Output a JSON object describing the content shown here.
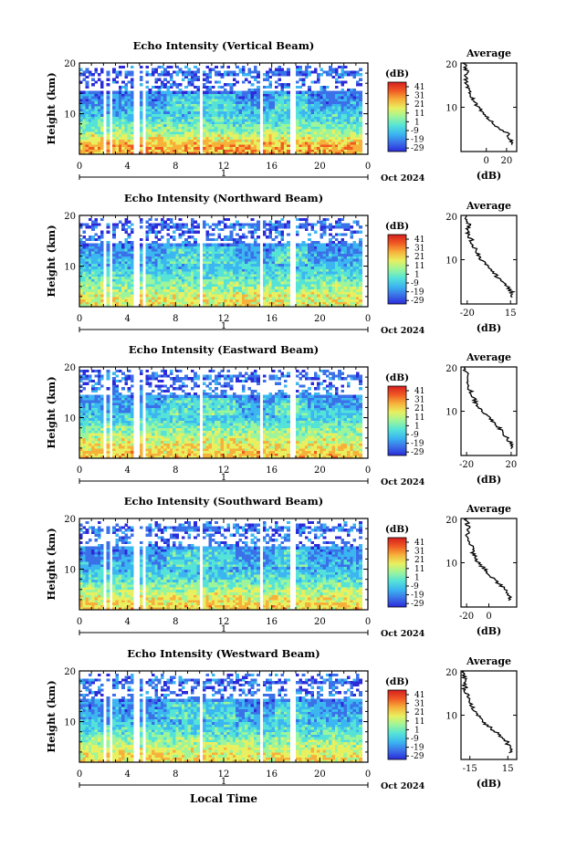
{
  "chart_data": {
    "type": "heatmap",
    "date_label": "Oct 2024",
    "date_tick_label": "1",
    "x_axis_label": "Local Time",
    "x_ticks": [
      "0",
      "4",
      "8",
      "12",
      "16",
      "20",
      "0"
    ],
    "xlim": [
      0,
      24
    ],
    "y_axis_label": "Height (km)",
    "ylim": [
      2,
      20
    ],
    "y_ticks": [
      "20",
      "10"
    ],
    "colorbar": {
      "label": "(dB)",
      "ticks": [
        "41",
        "31",
        "21",
        "11",
        "1",
        "-9",
        "-19",
        "-29"
      ],
      "range": [
        -29,
        46
      ],
      "colormap": [
        "#2b2bd9",
        "#3a70e8",
        "#3bb6f0",
        "#55e3d8",
        "#9cf59a",
        "#e8f060",
        "#f7b13a",
        "#f05a23",
        "#d61e1e"
      ]
    },
    "no_data_gaps_hours": [
      [
        1.9,
        2.2
      ],
      [
        2.5,
        2.7
      ],
      [
        4.5,
        4.8
      ],
      [
        5.1,
        5.3
      ],
      [
        9.8,
        10.0
      ],
      [
        14.9,
        15.2
      ],
      [
        17.5,
        17.8
      ]
    ],
    "average_title": "Average",
    "average_xlabel": "(dB)",
    "average_ytick": "10",
    "average_ytop": "20",
    "panels": [
      {
        "title": "Echo Intensity (Vertical Beam)",
        "avg_xlim": [
          -25,
          30
        ],
        "avg_xticks": [
          "0",
          "20"
        ],
        "avg_profile": {
          "height_km": [
            2.5,
            4,
            6,
            8,
            10,
            12,
            14,
            16,
            18,
            20
          ],
          "db": [
            24,
            21,
            8,
            0,
            -8,
            -14,
            -17,
            -20,
            -19,
            -22
          ]
        }
      },
      {
        "title": "Echo Intensity (Northward Beam)",
        "avg_xlim": [
          -25,
          20
        ],
        "avg_xticks": [
          "-20",
          "15"
        ],
        "avg_profile": {
          "height_km": [
            2.5,
            4,
            6,
            8,
            10,
            12,
            14,
            16,
            18,
            20
          ],
          "db": [
            16,
            13,
            5,
            -2,
            -9,
            -13,
            -16,
            -20,
            -19,
            -22
          ]
        }
      },
      {
        "title": "Echo Intensity (Eastward Beam)",
        "avg_xlim": [
          -25,
          25
        ],
        "avg_xticks": [
          "-20",
          "20"
        ],
        "avg_profile": {
          "height_km": [
            2.5,
            4,
            6,
            8,
            10,
            12,
            14,
            16,
            18,
            20
          ],
          "db": [
            20,
            17,
            10,
            3,
            -6,
            -12,
            -15,
            -20,
            -19,
            -22
          ]
        }
      },
      {
        "title": "Echo Intensity (Southward Beam)",
        "avg_xlim": [
          -25,
          25
        ],
        "avg_xticks": [
          "-20",
          "0"
        ],
        "avg_profile": {
          "height_km": [
            2.5,
            4,
            6,
            8,
            10,
            12,
            14,
            16,
            18,
            20
          ],
          "db": [
            19,
            15,
            6,
            -2,
            -9,
            -14,
            -16,
            -20,
            -18,
            -21
          ]
        }
      },
      {
        "title": "Echo Intensity (Westward Beam)",
        "avg_xlim": [
          -22,
          22
        ],
        "avg_xticks": [
          "-15",
          "15"
        ],
        "avg_profile": {
          "height_km": [
            2.5,
            4,
            6,
            8,
            10,
            12,
            14,
            16,
            18,
            20
          ],
          "db": [
            17,
            14,
            6,
            -2,
            -9,
            -14,
            -16,
            -19,
            -18,
            -21
          ]
        }
      }
    ]
  }
}
